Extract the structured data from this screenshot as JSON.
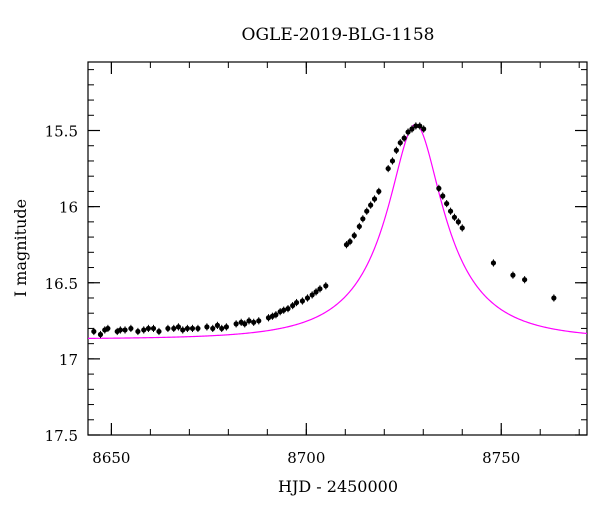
{
  "chart_data": {
    "type": "scatter",
    "title": "OGLE-2019-BLG-1158",
    "xlabel": "HJD - 2450000",
    "ylabel": "I magnitude",
    "xlim": [
      8644,
      8772
    ],
    "ylim": [
      17.5,
      15.05
    ],
    "y_inverted": true,
    "x_ticks": [
      {
        "value": 8650,
        "label": "8650"
      },
      {
        "value": 8700,
        "label": "8700"
      },
      {
        "value": 8750,
        "label": "8750"
      }
    ],
    "y_ticks": [
      {
        "value": 15.5,
        "label": "15.5"
      },
      {
        "value": 16,
        "label": "16"
      },
      {
        "value": 16.5,
        "label": "16.5"
      },
      {
        "value": 17,
        "label": "17"
      },
      {
        "value": 17.5,
        "label": "17.5"
      }
    ],
    "x_minor_step": 10,
    "y_minor_step": 0.1,
    "grid": false,
    "point_color": "#000000",
    "model_color": "#ff00ff",
    "model": {
      "baseline": 16.87,
      "peak": 15.46,
      "t0": 8728.0,
      "u0": 0.32,
      "tE": 22.0
    },
    "series": [
      {
        "name": "",
        "x": [
          8645.5,
          8647.2,
          8648.3,
          8649.1,
          8651.5,
          8652.3,
          8653.5,
          8655,
          8656.8,
          8658.3,
          8659.5,
          8660.8,
          8662.2,
          8664.5,
          8666,
          8667.2,
          8668.3,
          8669.5,
          8670.8,
          8672.2,
          8674.5,
          8676,
          8677.2,
          8678.3,
          8679.5,
          8682,
          8683.3,
          8684.2,
          8685.3,
          8686.5,
          8687.8,
          8690.3,
          8691.3,
          8692.2,
          8693.3,
          8694.2,
          8695.3,
          8696.5,
          8697.5,
          8699,
          8700.3,
          8701.5,
          8702.5,
          8703.5,
          8705,
          8710.3,
          8711.2,
          8712.3,
          8713.6,
          8714.5,
          8715.5,
          8716.5,
          8717.5,
          8718.6,
          8721,
          8722.1,
          8723.1,
          8724.1,
          8725.1,
          8726.1,
          8727.1,
          8728.1,
          8729.1,
          8730.1,
          8734,
          8735,
          8736,
          8737,
          8738,
          8739,
          8740,
          8748,
          8753,
          8756,
          8763.5
        ],
        "y": [
          16.82,
          16.84,
          16.81,
          16.8,
          16.82,
          16.81,
          16.81,
          16.8,
          16.82,
          16.81,
          16.8,
          16.8,
          16.82,
          16.8,
          16.8,
          16.79,
          16.81,
          16.8,
          16.8,
          16.8,
          16.79,
          16.8,
          16.78,
          16.8,
          16.79,
          16.77,
          16.76,
          16.77,
          16.75,
          16.76,
          16.75,
          16.73,
          16.72,
          16.71,
          16.69,
          16.68,
          16.67,
          16.65,
          16.63,
          16.62,
          16.6,
          16.58,
          16.56,
          16.54,
          16.52,
          16.25,
          16.23,
          16.19,
          16.13,
          16.08,
          16.03,
          15.99,
          15.95,
          15.9,
          15.75,
          15.7,
          15.63,
          15.58,
          15.55,
          15.51,
          15.49,
          15.47,
          15.47,
          15.49,
          15.88,
          15.93,
          15.98,
          16.03,
          16.07,
          16.1,
          16.14,
          16.37,
          16.45,
          16.48,
          16.6
        ]
      }
    ]
  }
}
